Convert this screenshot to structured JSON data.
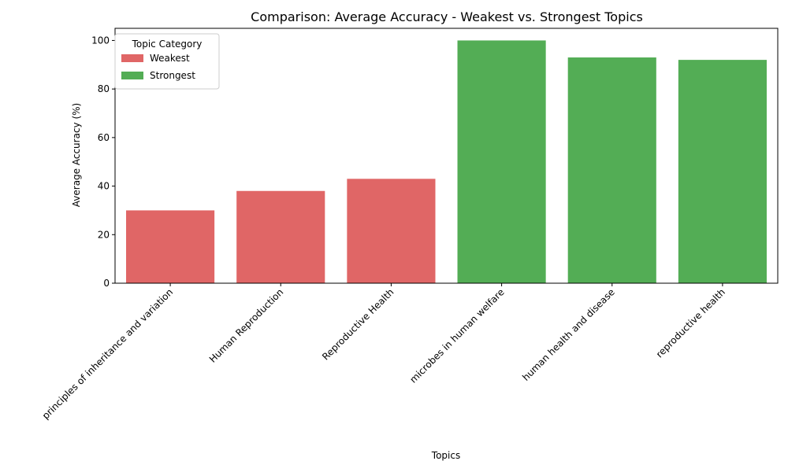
{
  "chart_data": {
    "type": "bar",
    "title": "Comparison: Average Accuracy - Weakest vs. Strongest Topics",
    "xlabel": "Topics",
    "ylabel": "Average Accuracy (%)",
    "ylim": [
      0,
      105
    ],
    "yticks": [
      0,
      20,
      40,
      60,
      80,
      100
    ],
    "grid": false,
    "categories": [
      "principles of inheritance and variation",
      "Human Reproduction",
      "Reproductive Health",
      "microbes in human welfare",
      "human health and disease",
      "reproductive health"
    ],
    "values": [
      30,
      38,
      43,
      100,
      93,
      92
    ],
    "bar_category": [
      "Weakest",
      "Weakest",
      "Weakest",
      "Strongest",
      "Strongest",
      "Strongest"
    ],
    "legend": {
      "title": "Topic Category",
      "placement": "top-left",
      "entries": [
        {
          "name": "Weakest",
          "color": "#e06666"
        },
        {
          "name": "Strongest",
          "color": "#53ad55"
        }
      ]
    }
  }
}
